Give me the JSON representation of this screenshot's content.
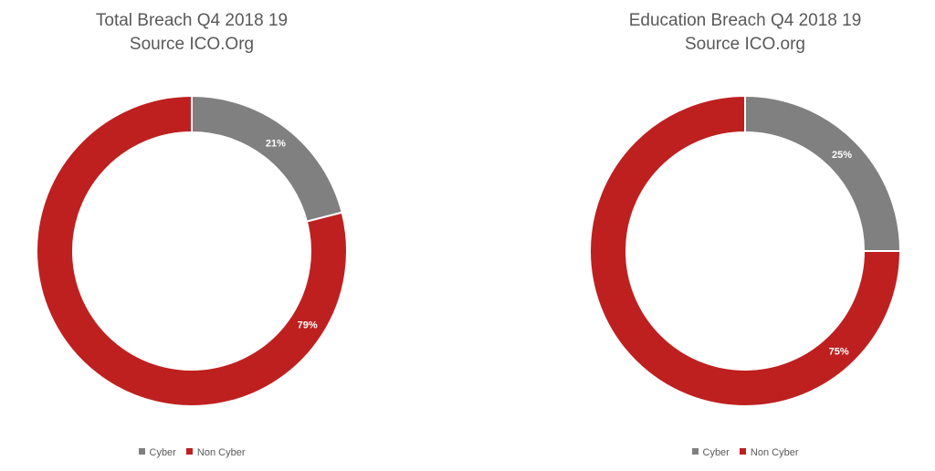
{
  "chart_data": [
    {
      "type": "pie",
      "title": "Total Breach Q4 2018 19",
      "subtitle": "Source ICO.Org",
      "categories": [
        "Cyber",
        "Non Cyber"
      ],
      "values": [
        21,
        79
      ],
      "labels": [
        "21%",
        "79%"
      ],
      "colors": [
        "#808080",
        "#BE2020"
      ],
      "legend": "bottom"
    },
    {
      "type": "pie",
      "title": "Education Breach Q4 2018 19",
      "subtitle": "Source ICO.org",
      "categories": [
        "Cyber",
        "Non Cyber"
      ],
      "values": [
        25,
        75
      ],
      "labels": [
        "25%",
        "75%"
      ],
      "colors": [
        "#808080",
        "#BE2020"
      ],
      "legend": "bottom"
    }
  ]
}
